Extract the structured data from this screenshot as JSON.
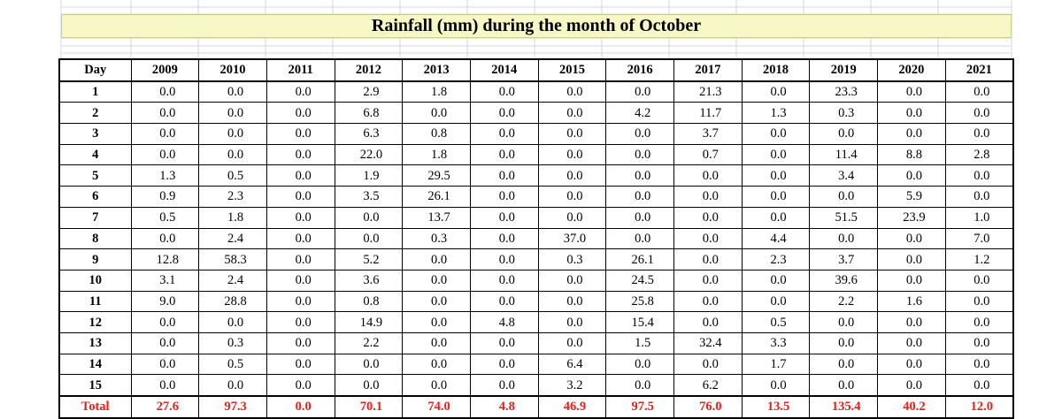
{
  "title": "Rainfall (mm) during the month of October",
  "header": {
    "day_label": "Day",
    "years": [
      "2009",
      "2010",
      "2011",
      "2012",
      "2013",
      "2014",
      "2015",
      "2016",
      "2017",
      "2018",
      "2019",
      "2020",
      "2021"
    ]
  },
  "rows": [
    {
      "day": "1",
      "values": [
        "0.0",
        "0.0",
        "0.0",
        "2.9",
        "1.8",
        "0.0",
        "0.0",
        "0.0",
        "21.3",
        "0.0",
        "23.3",
        "0.0",
        "0.0"
      ]
    },
    {
      "day": "2",
      "values": [
        "0.0",
        "0.0",
        "0.0",
        "6.8",
        "0.0",
        "0.0",
        "0.0",
        "4.2",
        "11.7",
        "1.3",
        "0.3",
        "0.0",
        "0.0"
      ]
    },
    {
      "day": "3",
      "values": [
        "0.0",
        "0.0",
        "0.0",
        "6.3",
        "0.8",
        "0.0",
        "0.0",
        "0.0",
        "3.7",
        "0.0",
        "0.0",
        "0.0",
        "0.0"
      ]
    },
    {
      "day": "4",
      "values": [
        "0.0",
        "0.0",
        "0.0",
        "22.0",
        "1.8",
        "0.0",
        "0.0",
        "0.0",
        "0.7",
        "0.0",
        "11.4",
        "8.8",
        "2.8"
      ]
    },
    {
      "day": "5",
      "values": [
        "1.3",
        "0.5",
        "0.0",
        "1.9",
        "29.5",
        "0.0",
        "0.0",
        "0.0",
        "0.0",
        "0.0",
        "3.4",
        "0.0",
        "0.0"
      ]
    },
    {
      "day": "6",
      "values": [
        "0.9",
        "2.3",
        "0.0",
        "3.5",
        "26.1",
        "0.0",
        "0.0",
        "0.0",
        "0.0",
        "0.0",
        "0.0",
        "5.9",
        "0.0"
      ]
    },
    {
      "day": "7",
      "values": [
        "0.5",
        "1.8",
        "0.0",
        "0.0",
        "13.7",
        "0.0",
        "0.0",
        "0.0",
        "0.0",
        "0.0",
        "51.5",
        "23.9",
        "1.0"
      ]
    },
    {
      "day": "8",
      "values": [
        "0.0",
        "2.4",
        "0.0",
        "0.0",
        "0.3",
        "0.0",
        "37.0",
        "0.0",
        "0.0",
        "4.4",
        "0.0",
        "0.0",
        "7.0"
      ]
    },
    {
      "day": "9",
      "values": [
        "12.8",
        "58.3",
        "0.0",
        "5.2",
        "0.0",
        "0.0",
        "0.3",
        "26.1",
        "0.0",
        "2.3",
        "3.7",
        "0.0",
        "1.2"
      ]
    },
    {
      "day": "10",
      "values": [
        "3.1",
        "2.4",
        "0.0",
        "3.6",
        "0.0",
        "0.0",
        "0.0",
        "24.5",
        "0.0",
        "0.0",
        "39.6",
        "0.0",
        "0.0"
      ]
    },
    {
      "day": "11",
      "values": [
        "9.0",
        "28.8",
        "0.0",
        "0.8",
        "0.0",
        "0.0",
        "0.0",
        "25.8",
        "0.0",
        "0.0",
        "2.2",
        "1.6",
        "0.0"
      ]
    },
    {
      "day": "12",
      "values": [
        "0.0",
        "0.0",
        "0.0",
        "14.9",
        "0.0",
        "4.8",
        "0.0",
        "15.4",
        "0.0",
        "0.5",
        "0.0",
        "0.0",
        "0.0"
      ]
    },
    {
      "day": "13",
      "values": [
        "0.0",
        "0.3",
        "0.0",
        "2.2",
        "0.0",
        "0.0",
        "0.0",
        "1.5",
        "32.4",
        "3.3",
        "0.0",
        "0.0",
        "0.0"
      ]
    },
    {
      "day": "14",
      "values": [
        "0.0",
        "0.5",
        "0.0",
        "0.0",
        "0.0",
        "0.0",
        "6.4",
        "0.0",
        "0.0",
        "1.7",
        "0.0",
        "0.0",
        "0.0"
      ]
    },
    {
      "day": "15",
      "values": [
        "0.0",
        "0.0",
        "0.0",
        "0.0",
        "0.0",
        "0.0",
        "3.2",
        "0.0",
        "6.2",
        "0.0",
        "0.0",
        "0.0",
        "0.0"
      ]
    }
  ],
  "total": {
    "label": "Total",
    "values": [
      "27.6",
      "97.3",
      "0.0",
      "70.1",
      "74.0",
      "4.8",
      "46.9",
      "97.5",
      "76.0",
      "13.5",
      "135.4",
      "40.2",
      "12.0"
    ]
  },
  "colors": {
    "title_fill": "#f7f8c6",
    "total_text": "#e8201b",
    "sheet_gridline": "#d6d6e6"
  }
}
